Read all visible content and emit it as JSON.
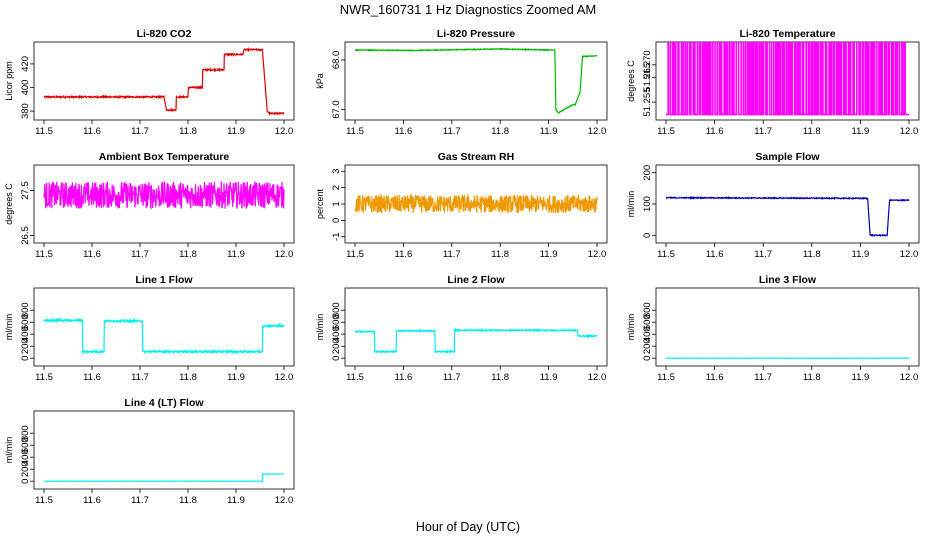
{
  "figure": {
    "title": "NWR_160731  1 Hz Diagnostics Zoomed AM",
    "xlabel": "Hour of Day (UTC)"
  },
  "chart_data": [
    {
      "type": "line",
      "id": "co2",
      "title": "Li-820 CO2",
      "ylabel": "Licor ppm",
      "color": "#dd0000",
      "xlim": [
        11.5,
        12.0
      ],
      "ylim": [
        375,
        436
      ],
      "xticks": [
        "11.5",
        "11.6",
        "11.7",
        "11.8",
        "11.9",
        "12.0"
      ],
      "yticks": [
        "380",
        "400",
        "420"
      ],
      "series": [
        {
          "name": "CO2",
          "noise": 0.6,
          "x": [
            11.5,
            11.75,
            11.755,
            11.775,
            11.775,
            11.8,
            11.8,
            11.83,
            11.83,
            11.875,
            11.875,
            11.915,
            11.915,
            11.95,
            11.955,
            11.965,
            11.97,
            12.0
          ],
          "y": [
            392,
            392,
            381,
            381,
            392,
            392,
            400,
            400,
            415,
            415,
            428,
            428,
            432,
            432,
            432,
            380,
            378,
            378
          ]
        }
      ]
    },
    {
      "type": "line",
      "id": "pressure",
      "title": "Li-820 Pressure",
      "ylabel": "kPa",
      "color": "#00bb00",
      "xlim": [
        11.5,
        12.0
      ],
      "ylim": [
        66.85,
        68.3
      ],
      "xticks": [
        "11.5",
        "11.6",
        "11.7",
        "11.8",
        "11.9",
        "12.0"
      ],
      "yticks": [
        "67.0",
        "68.0"
      ],
      "series": [
        {
          "name": "Pressure",
          "noise": 0.008,
          "x": [
            11.5,
            11.62,
            11.8,
            11.9,
            11.913,
            11.915,
            11.92,
            11.95,
            11.955,
            11.965,
            11.97,
            12.0
          ],
          "y": [
            68.2,
            68.19,
            68.22,
            68.2,
            68.2,
            67.0,
            66.93,
            67.1,
            67.1,
            67.35,
            68.07,
            68.08
          ]
        }
      ]
    },
    {
      "type": "step",
      "id": "licor-temp",
      "title": "Li-820 Temperature",
      "ylabel": "degrees C",
      "color": "#ff00ff",
      "xlim": [
        11.5,
        12.0
      ],
      "ylim": [
        51.249,
        51.278
      ],
      "xticks": [
        "11.5",
        "11.6",
        "11.7",
        "11.8",
        "11.9",
        "12.0"
      ],
      "yticks": [
        "51.255",
        "51.265",
        "51.270"
      ],
      "levels": [
        51.25,
        51.28
      ],
      "switches": 160,
      "series": [
        {
          "name": "Licor Temp"
        }
      ]
    },
    {
      "type": "line",
      "id": "ambient-temp",
      "title": "Ambient Box Temperature",
      "ylabel": "degrees C",
      "color": "#ff00ff",
      "xlim": [
        11.5,
        12.0
      ],
      "ylim": [
        26.4,
        28.0
      ],
      "xticks": [
        "11.5",
        "11.6",
        "11.7",
        "11.8",
        "11.9",
        "12.0"
      ],
      "yticks": [
        "26.5",
        "27.5"
      ],
      "series": [
        {
          "name": "Ambient",
          "noise": 0.3,
          "x": [
            11.5,
            12.0
          ],
          "y": [
            27.4,
            27.4
          ]
        }
      ]
    },
    {
      "type": "line",
      "id": "gas-rh",
      "title": "Gas Stream RH",
      "ylabel": "percent",
      "color": "#ee9900",
      "xlim": [
        11.5,
        12.0
      ],
      "ylim": [
        -1.2,
        3.2
      ],
      "xticks": [
        "11.5",
        "11.6",
        "11.7",
        "11.8",
        "11.9",
        "12.0"
      ],
      "yticks": [
        "-1",
        "0",
        "1",
        "2",
        "3"
      ],
      "series": [
        {
          "name": "RH",
          "noise": 0.55,
          "x": [
            11.5,
            12.0
          ],
          "y": [
            1.0,
            1.0
          ]
        }
      ]
    },
    {
      "type": "line",
      "id": "sample-flow",
      "title": "Sample Flow",
      "ylabel": "ml/min",
      "color": "#0000bb",
      "xlim": [
        11.5,
        12.0
      ],
      "ylim": [
        -15,
        215
      ],
      "xticks": [
        "11.5",
        "11.6",
        "11.7",
        "11.8",
        "11.9",
        "12.0"
      ],
      "yticks": [
        "0",
        "100",
        "200"
      ],
      "series": [
        {
          "name": "Sample",
          "noise": 1.5,
          "x": [
            11.5,
            11.915,
            11.92,
            11.955,
            11.96,
            12.0
          ],
          "y": [
            120,
            118,
            0,
            0,
            112,
            112
          ]
        }
      ]
    },
    {
      "type": "line",
      "id": "line1-flow",
      "title": "Line 1 Flow",
      "ylabel": "ml/min",
      "color": "#00eeee",
      "xlim": [
        11.5,
        12.0
      ],
      "ylim": [
        -80,
        1120
      ],
      "xticks": [
        "11.5",
        "11.6",
        "11.7",
        "11.8",
        "11.9",
        "12.0"
      ],
      "yticks": [
        "0",
        "200",
        "400",
        "600",
        "800"
      ],
      "series": [
        {
          "name": "Line 1",
          "noise": 15,
          "x": [
            11.5,
            11.58,
            11.58,
            11.625,
            11.625,
            11.705,
            11.705,
            11.955,
            11.955,
            12.0
          ],
          "y": [
            630,
            630,
            110,
            110,
            620,
            620,
            110,
            110,
            540,
            540
          ]
        }
      ]
    },
    {
      "type": "line",
      "id": "line2-flow",
      "title": "Line 2 Flow",
      "ylabel": "ml/min",
      "color": "#00eeee",
      "xlim": [
        11.5,
        12.0
      ],
      "ylim": [
        -80,
        1120
      ],
      "xticks": [
        "11.5",
        "11.6",
        "11.7",
        "11.8",
        "11.9",
        "12.0"
      ],
      "yticks": [
        "0",
        "200",
        "400",
        "600",
        "800"
      ],
      "series": [
        {
          "name": "Line 2",
          "noise": 10,
          "x": [
            11.5,
            11.54,
            11.54,
            11.585,
            11.585,
            11.665,
            11.665,
            11.705,
            11.705,
            11.96,
            11.96,
            12.0
          ],
          "y": [
            445,
            445,
            110,
            110,
            455,
            455,
            110,
            110,
            465,
            465,
            370,
            370
          ]
        }
      ]
    },
    {
      "type": "line",
      "id": "line3-flow",
      "title": "Line 3 Flow",
      "ylabel": "ml/min",
      "color": "#00eeee",
      "xlim": [
        11.5,
        12.0
      ],
      "ylim": [
        -80,
        1120
      ],
      "xticks": [
        "11.5",
        "11.6",
        "11.7",
        "11.8",
        "11.9",
        "12.0"
      ],
      "yticks": [
        "0",
        "200",
        "400",
        "600",
        "800"
      ],
      "series": [
        {
          "name": "Line 3",
          "noise": 1,
          "x": [
            11.5,
            12.0
          ],
          "y": [
            0,
            0
          ]
        }
      ]
    },
    {
      "type": "line",
      "id": "line4-flow",
      "title": "Line 4 (LT) Flow",
      "ylabel": "ml/min",
      "color": "#00eeee",
      "xlim": [
        11.5,
        12.0
      ],
      "ylim": [
        -80,
        1120
      ],
      "xticks": [
        "11.5",
        "11.6",
        "11.7",
        "11.8",
        "11.9",
        "12.0"
      ],
      "yticks": [
        "0",
        "200",
        "400",
        "600",
        "800"
      ],
      "series": [
        {
          "name": "Line 4",
          "noise": 1,
          "x": [
            11.5,
            11.955,
            11.955,
            12.0
          ],
          "y": [
            0,
            0,
            120,
            120
          ]
        }
      ]
    }
  ]
}
